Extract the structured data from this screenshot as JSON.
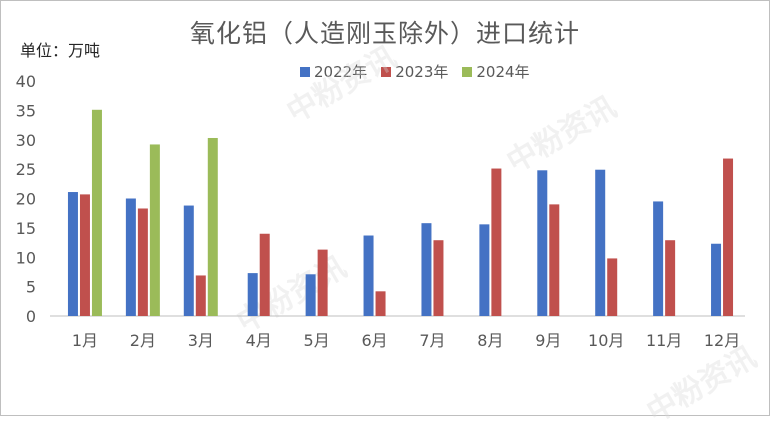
{
  "chart_data": {
    "type": "bar",
    "title": "氧化铝（人造刚玉除外）进口统计",
    "unit_label": "单位：万吨",
    "categories": [
      "1月",
      "2月",
      "3月",
      "4月",
      "5月",
      "6月",
      "7月",
      "8月",
      "9月",
      "10月",
      "11月",
      "12月"
    ],
    "series": [
      {
        "name": "2022年",
        "color": "#4472c4",
        "values": [
          21.1,
          20.0,
          18.8,
          7.3,
          7.1,
          13.7,
          15.8,
          15.6,
          24.8,
          24.9,
          19.5,
          12.3
        ]
      },
      {
        "name": "2023年",
        "color": "#c0504d",
        "values": [
          20.7,
          18.3,
          6.9,
          14.0,
          11.3,
          4.2,
          12.9,
          25.1,
          19.0,
          9.8,
          12.9,
          26.8
        ]
      },
      {
        "name": "2024年",
        "color": "#9bbb59",
        "values": [
          35.1,
          29.2,
          30.3,
          null,
          null,
          null,
          null,
          null,
          null,
          null,
          null,
          null
        ]
      }
    ],
    "ylim": [
      0,
      40
    ],
    "yticks": [
      0,
      5,
      10,
      15,
      20,
      25,
      30,
      35,
      40
    ],
    "legend_position": "top",
    "grid": false
  },
  "watermark": "中粉资讯"
}
